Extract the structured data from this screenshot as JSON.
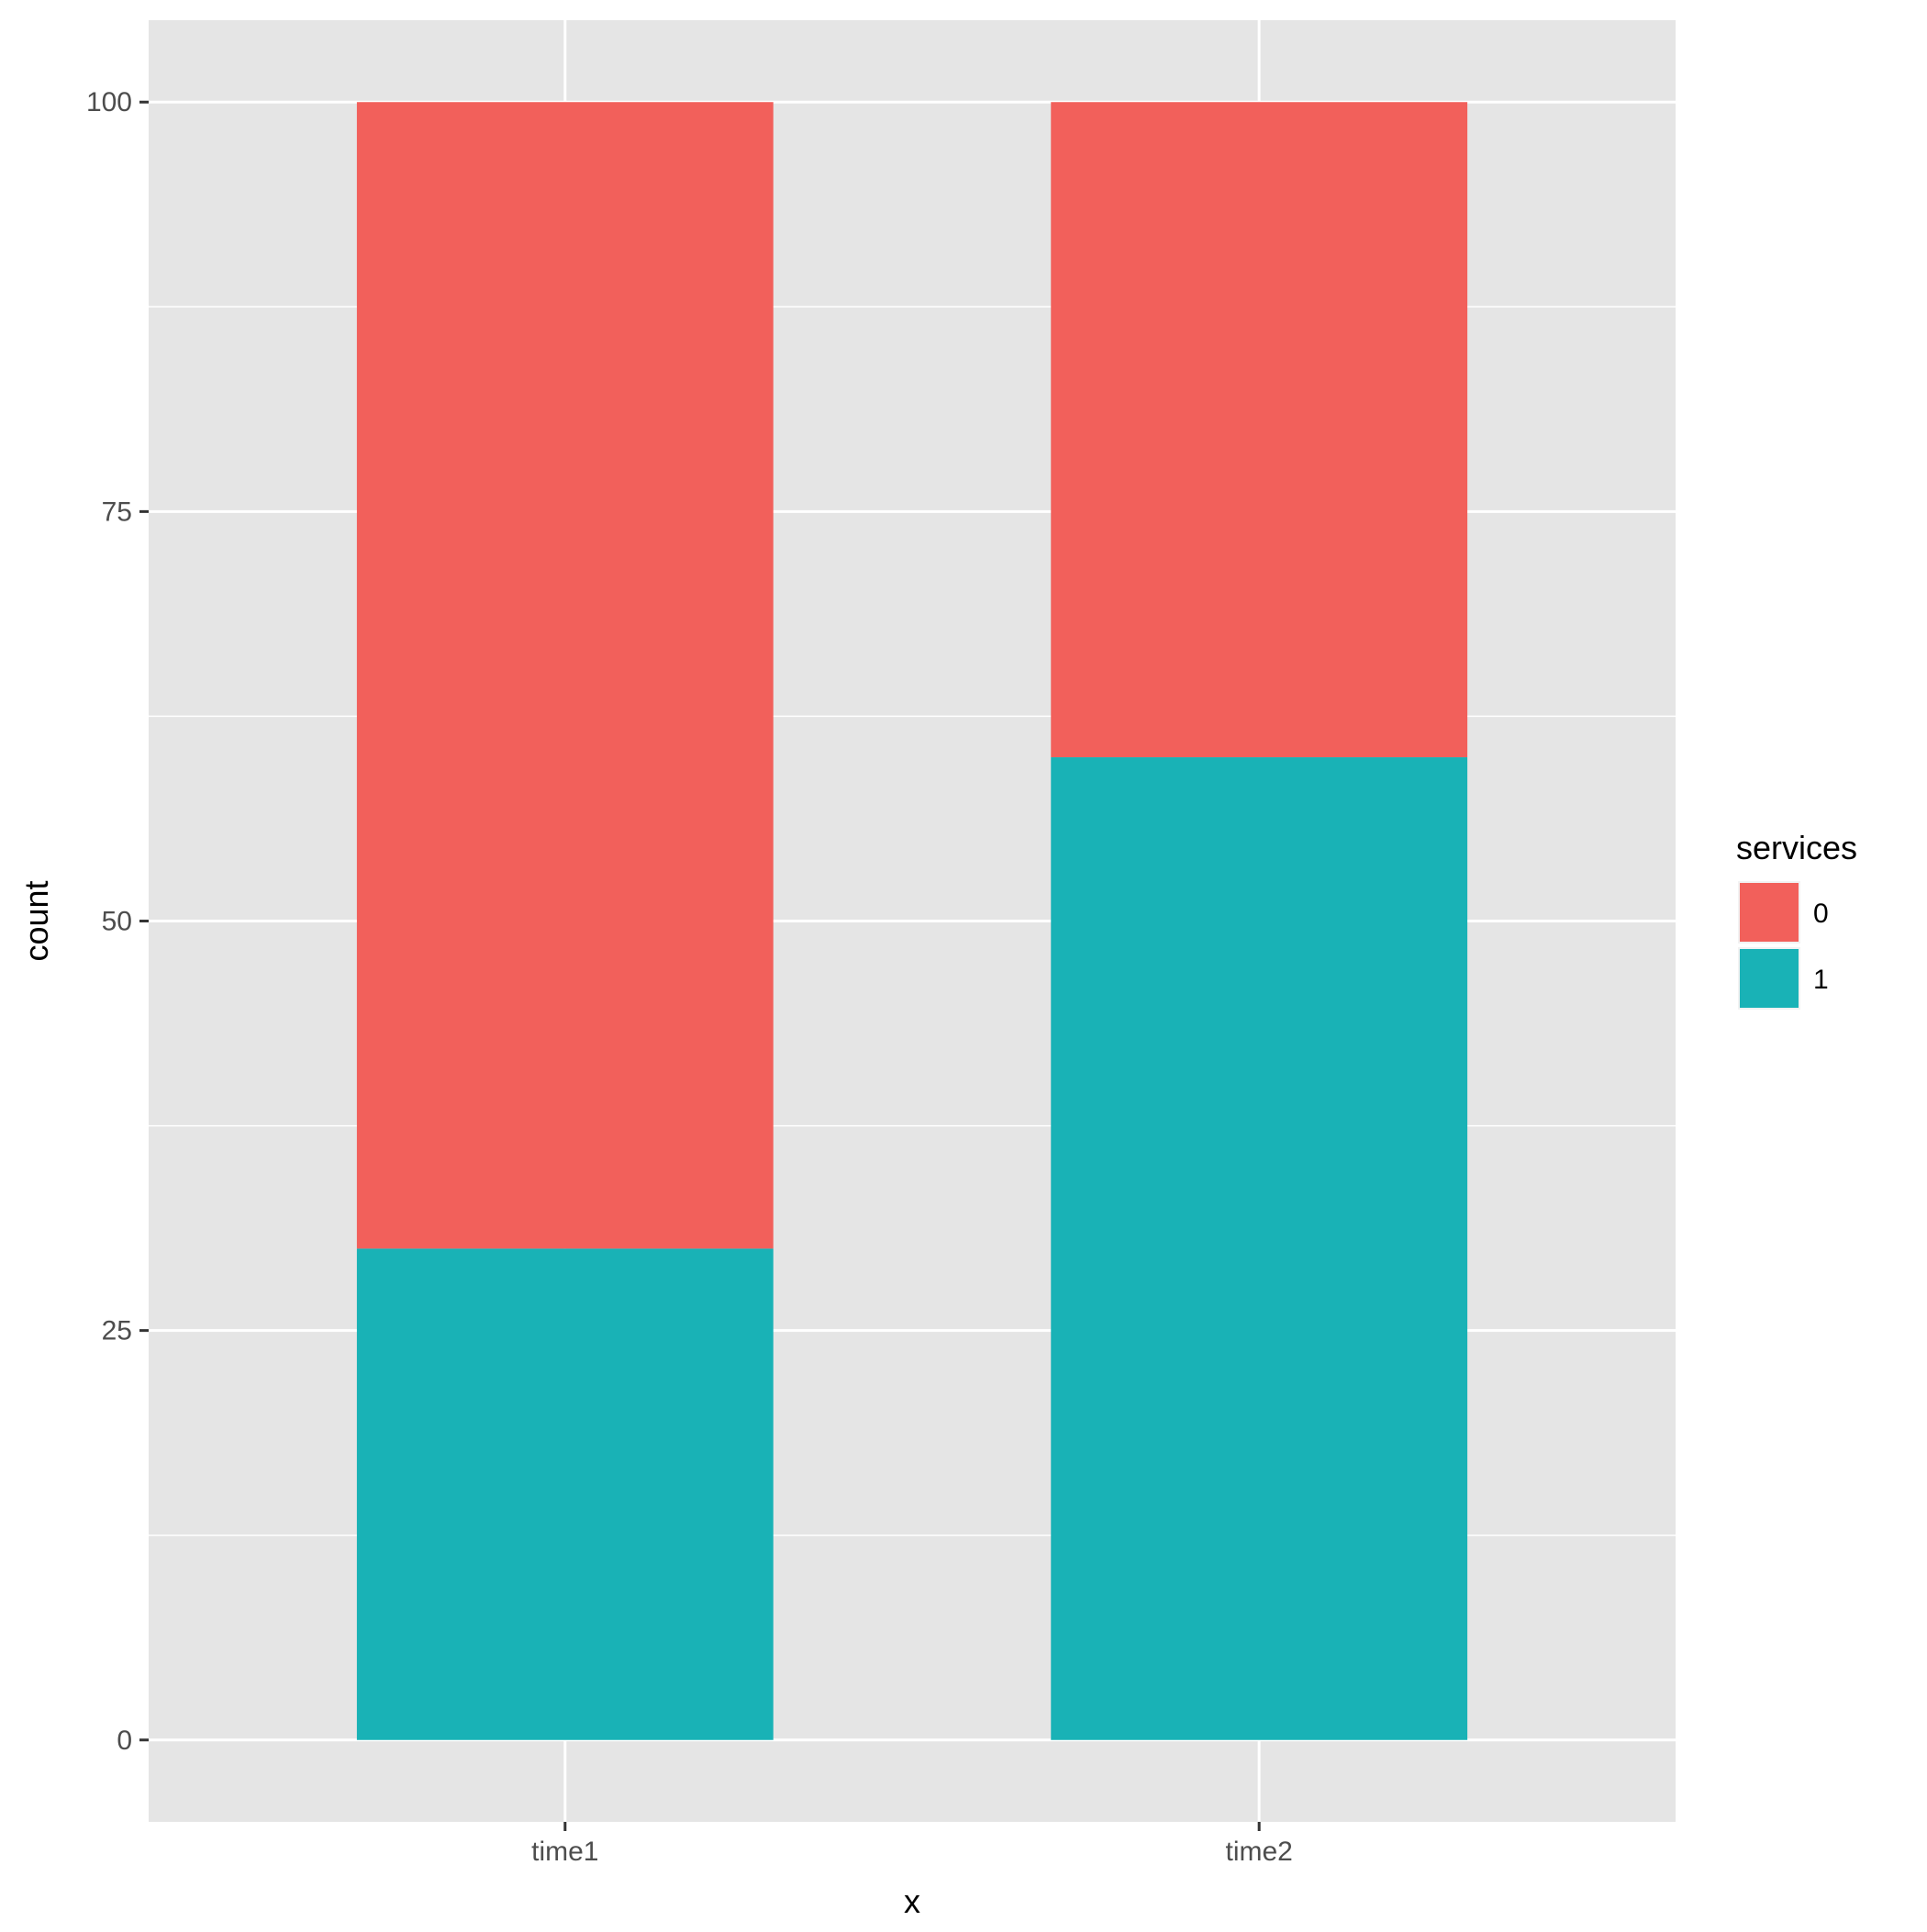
{
  "chart_data": {
    "type": "bar",
    "stacked": true,
    "categories": [
      "time1",
      "time2"
    ],
    "series": [
      {
        "name": "0",
        "values": [
          70,
          40
        ],
        "color": "#F2605B"
      },
      {
        "name": "1",
        "values": [
          30,
          60
        ],
        "color": "#19B2B6"
      }
    ],
    "xlabel": "x",
    "ylabel": "count",
    "ylim": [
      -5,
      105
    ],
    "yticks": [
      0,
      25,
      50,
      75,
      100
    ],
    "legend": {
      "title": "services",
      "position": "right"
    },
    "grid": true,
    "panel_background": "#E5E5E5",
    "grid_color": "#FFFFFF"
  }
}
